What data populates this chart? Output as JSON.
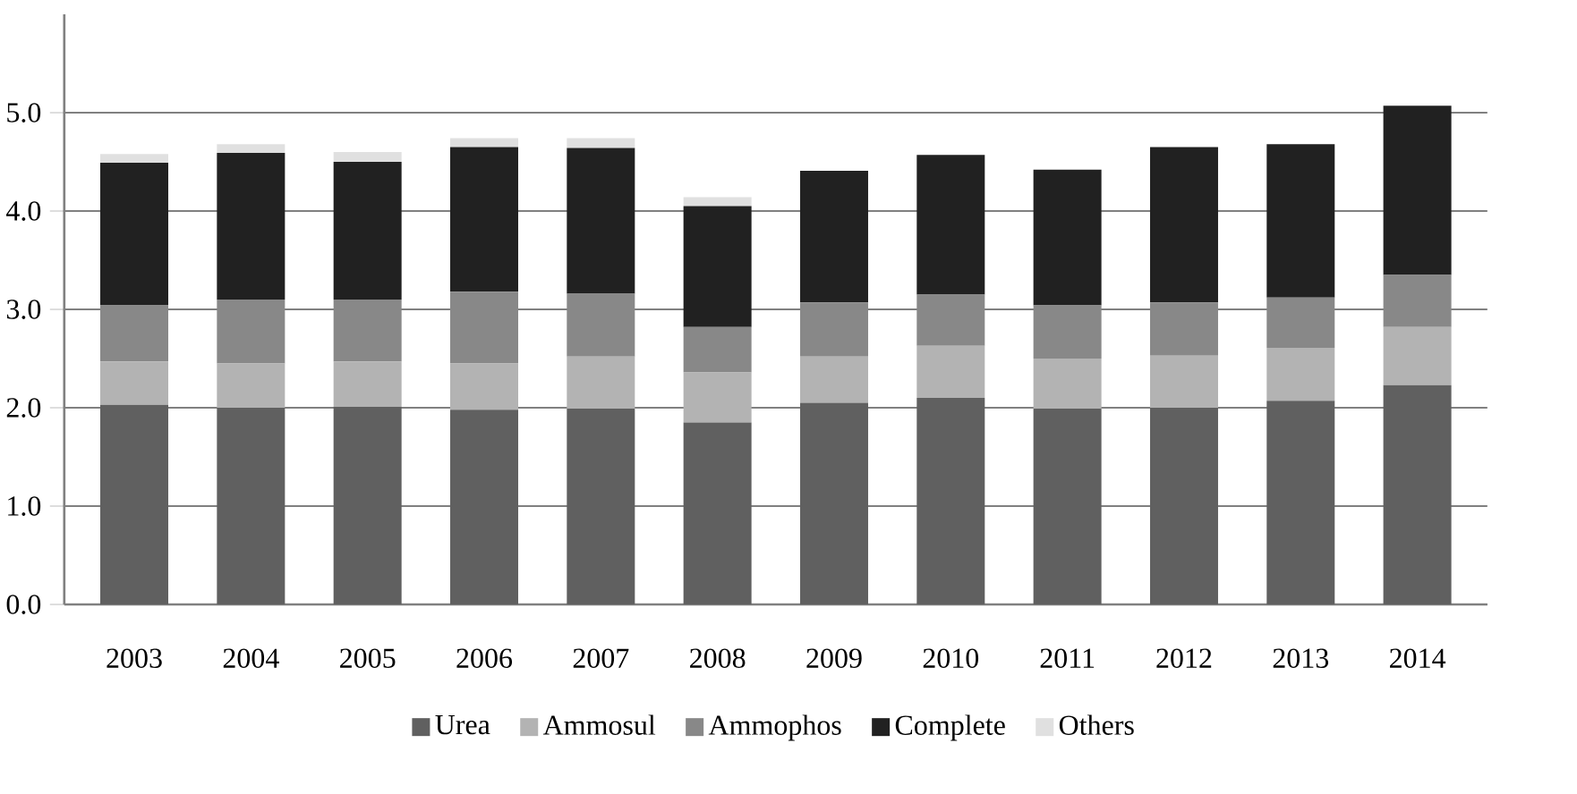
{
  "chart_data": {
    "type": "bar",
    "stacked": true,
    "categories": [
      "2003",
      "2004",
      "2005",
      "2006",
      "2007",
      "2008",
      "2009",
      "2010",
      "2011",
      "2012",
      "2013",
      "2014"
    ],
    "series": [
      {
        "name": "Urea",
        "color": "#606060",
        "values": [
          2.03,
          2.0,
          2.01,
          1.98,
          1.99,
          1.85,
          2.05,
          2.1,
          1.99,
          2.0,
          2.07,
          2.23
        ]
      },
      {
        "name": "Ammosul",
        "color": "#b3b3b3",
        "values": [
          0.44,
          0.45,
          0.46,
          0.47,
          0.53,
          0.51,
          0.47,
          0.53,
          0.51,
          0.53,
          0.54,
          0.59
        ]
      },
      {
        "name": "Ammophos",
        "color": "#888888",
        "values": [
          0.57,
          0.65,
          0.63,
          0.73,
          0.64,
          0.46,
          0.55,
          0.52,
          0.54,
          0.54,
          0.51,
          0.53
        ]
      },
      {
        "name": "Complete",
        "color": "#212121",
        "values": [
          1.45,
          1.49,
          1.4,
          1.47,
          1.48,
          1.23,
          1.34,
          1.42,
          1.38,
          1.58,
          1.56,
          1.72
        ]
      },
      {
        "name": "Others",
        "color": "#e0e0e0",
        "values": [
          0.09,
          0.09,
          0.1,
          0.09,
          0.1,
          0.09,
          null,
          null,
          null,
          null,
          null,
          null
        ]
      }
    ],
    "ylim": [
      0,
      6
    ],
    "yticks": [
      {
        "value": 0,
        "label": "0.0"
      },
      {
        "value": 1,
        "label": "1.0"
      },
      {
        "value": 2,
        "label": "2.0"
      },
      {
        "value": 3,
        "label": "3.0"
      },
      {
        "value": 4,
        "label": "4.0"
      },
      {
        "value": 5,
        "label": "5.0"
      }
    ],
    "grid": "y",
    "legend": "bottom"
  }
}
